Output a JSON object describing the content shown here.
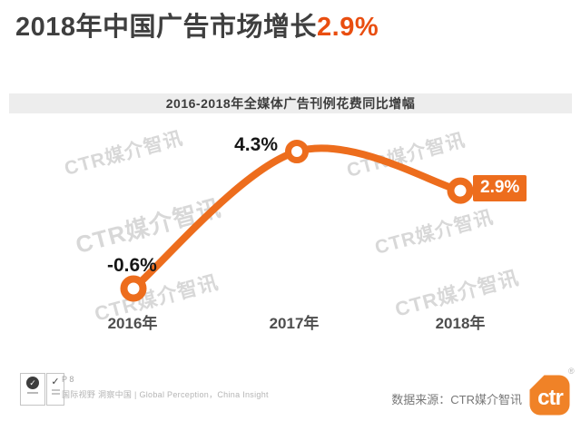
{
  "header": {
    "title_prefix": "2018年中国广告市场增长",
    "title_highlight": "2.9%"
  },
  "chart_data": {
    "type": "line",
    "title": "2016-2018年全媒体广告刊例花费同比增幅",
    "categories": [
      "2016年",
      "2017年",
      "2018年"
    ],
    "values": [
      -0.6,
      4.3,
      2.9
    ],
    "data_labels": [
      "-0.6%",
      "4.3%",
      "2.9%"
    ],
    "unit": "%",
    "ylim": [
      -2,
      6
    ],
    "grid": false,
    "legend": "none",
    "marker_style": "open-circle",
    "highlight_last_point": true
  },
  "watermark": {
    "text": "CTR媒介智讯"
  },
  "footer": {
    "page_number": "P 8",
    "slogan": "国际视野 洞察中国 | Global Perception，China Insight",
    "source": "数据来源：CTR媒介智讯",
    "logo_text": "ctr",
    "registered_mark": "®",
    "cert_icons": [
      "quality-certification-icon",
      "trust-certification-icon"
    ]
  },
  "colors": {
    "accent_orange": "#ed6d1d",
    "title_highlight_orange": "#e94e10",
    "logo_orange": "#f08227",
    "watermark_gray": "#d8d8d8"
  }
}
